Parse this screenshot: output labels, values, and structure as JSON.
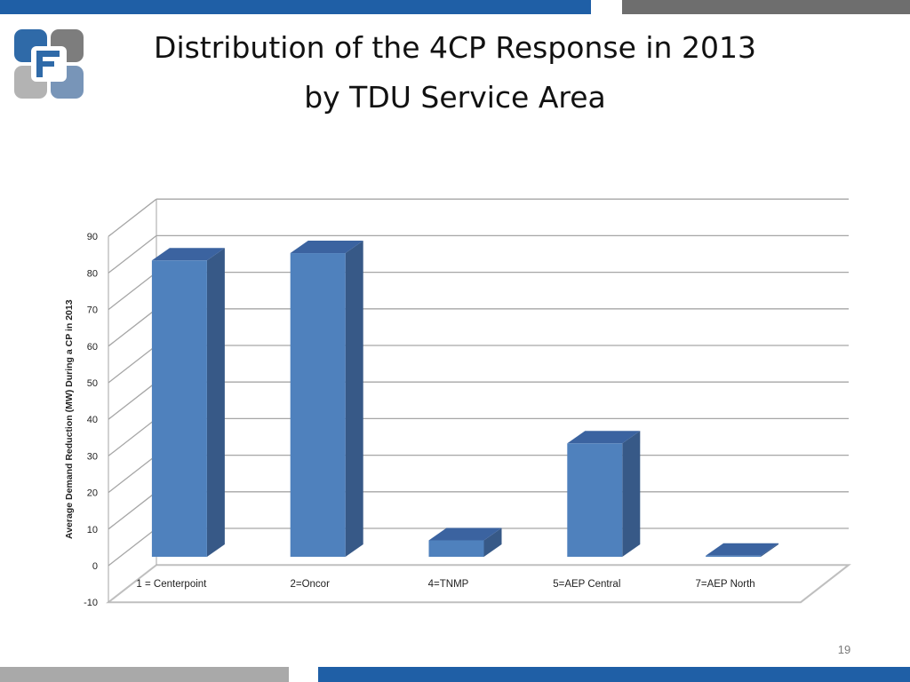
{
  "slide": {
    "title_line1": "Distribution of the 4CP Response in 2013",
    "title_line2": "by TDU Service Area",
    "page_number": "19"
  },
  "colors": {
    "top_bar_blue": "#1f5fa6",
    "top_bar_gray": "#6e6e6e",
    "bottom_bar_gray": "#a9a9a9",
    "bottom_bar_blue": "#1f5fa6",
    "bar_front": "#4f81bd",
    "bar_side": "#375987",
    "bar_top": "#3b63a0"
  },
  "chart_data": {
    "type": "bar",
    "categories": [
      "1 = Centerpoint",
      "2=Oncor",
      "4=TNMP",
      "5=AEP Central",
      "7=AEP North"
    ],
    "values": [
      81,
      83,
      4.5,
      31,
      0.3
    ],
    "title": "",
    "xlabel": "",
    "ylabel": "Average Demand Reduction (MW) During a CP in 2013",
    "ylim": [
      -10,
      90
    ],
    "yticks": [
      -10,
      0,
      10,
      20,
      30,
      40,
      50,
      60,
      70,
      80,
      90
    ],
    "grid": true,
    "style": "3d"
  }
}
